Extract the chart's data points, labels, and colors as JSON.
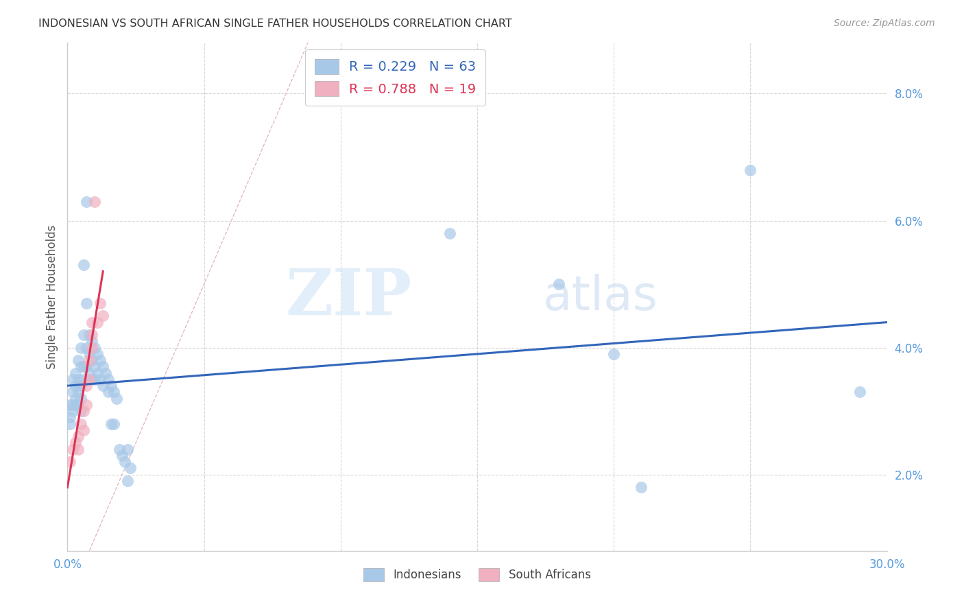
{
  "title": "INDONESIAN VS SOUTH AFRICAN SINGLE FATHER HOUSEHOLDS CORRELATION CHART",
  "source": "Source: ZipAtlas.com",
  "ylabel_label": "Single Father Households",
  "xlim": [
    0.0,
    0.3
  ],
  "ylim": [
    0.008,
    0.088
  ],
  "xticks": [
    0.0,
    0.05,
    0.1,
    0.15,
    0.2,
    0.25,
    0.3
  ],
  "yticks": [
    0.02,
    0.04,
    0.06,
    0.08
  ],
  "ytick_labels": [
    "2.0%",
    "4.0%",
    "6.0%",
    "8.0%"
  ],
  "xtick_labels": [
    "0.0%",
    "",
    "",
    "",
    "",
    "",
    "30.0%"
  ],
  "legend_r1": "R = 0.229",
  "legend_n1": "N = 63",
  "legend_r2": "R = 0.788",
  "legend_n2": "N = 19",
  "indonesian_color": "#a8c8e8",
  "south_african_color": "#f0b0c0",
  "background_color": "#ffffff",
  "grid_color": "#cccccc",
  "title_color": "#333333",
  "axis_tick_color": "#5599dd",
  "indonesian_line_color": "#3366bb",
  "south_african_line_color": "#dd3355",
  "diagonal_line_color": "#ddaaaa",
  "watermark_zip": "ZIP",
  "watermark_atlas": "atlas",
  "indonesian_data": [
    [
      0.001,
      0.031
    ],
    [
      0.001,
      0.029
    ],
    [
      0.001,
      0.028
    ],
    [
      0.002,
      0.035
    ],
    [
      0.002,
      0.033
    ],
    [
      0.002,
      0.031
    ],
    [
      0.002,
      0.03
    ],
    [
      0.003,
      0.036
    ],
    [
      0.003,
      0.034
    ],
    [
      0.003,
      0.032
    ],
    [
      0.003,
      0.031
    ],
    [
      0.004,
      0.038
    ],
    [
      0.004,
      0.035
    ],
    [
      0.004,
      0.033
    ],
    [
      0.004,
      0.031
    ],
    [
      0.005,
      0.04
    ],
    [
      0.005,
      0.037
    ],
    [
      0.005,
      0.034
    ],
    [
      0.005,
      0.032
    ],
    [
      0.005,
      0.03
    ],
    [
      0.006,
      0.053
    ],
    [
      0.006,
      0.042
    ],
    [
      0.006,
      0.037
    ],
    [
      0.006,
      0.035
    ],
    [
      0.007,
      0.063
    ],
    [
      0.007,
      0.047
    ],
    [
      0.007,
      0.04
    ],
    [
      0.007,
      0.037
    ],
    [
      0.008,
      0.042
    ],
    [
      0.008,
      0.039
    ],
    [
      0.008,
      0.036
    ],
    [
      0.009,
      0.041
    ],
    [
      0.009,
      0.038
    ],
    [
      0.009,
      0.035
    ],
    [
      0.01,
      0.04
    ],
    [
      0.01,
      0.037
    ],
    [
      0.01,
      0.035
    ],
    [
      0.011,
      0.039
    ],
    [
      0.011,
      0.036
    ],
    [
      0.012,
      0.038
    ],
    [
      0.012,
      0.035
    ],
    [
      0.013,
      0.037
    ],
    [
      0.013,
      0.034
    ],
    [
      0.014,
      0.036
    ],
    [
      0.015,
      0.035
    ],
    [
      0.015,
      0.033
    ],
    [
      0.016,
      0.034
    ],
    [
      0.016,
      0.028
    ],
    [
      0.017,
      0.033
    ],
    [
      0.017,
      0.028
    ],
    [
      0.018,
      0.032
    ],
    [
      0.019,
      0.024
    ],
    [
      0.02,
      0.023
    ],
    [
      0.021,
      0.022
    ],
    [
      0.022,
      0.024
    ],
    [
      0.022,
      0.019
    ],
    [
      0.023,
      0.021
    ],
    [
      0.14,
      0.058
    ],
    [
      0.18,
      0.05
    ],
    [
      0.2,
      0.039
    ],
    [
      0.21,
      0.018
    ],
    [
      0.25,
      0.068
    ],
    [
      0.29,
      0.033
    ]
  ],
  "south_african_data": [
    [
      0.001,
      0.022
    ],
    [
      0.002,
      0.024
    ],
    [
      0.003,
      0.025
    ],
    [
      0.004,
      0.026
    ],
    [
      0.004,
      0.024
    ],
    [
      0.005,
      0.028
    ],
    [
      0.006,
      0.03
    ],
    [
      0.006,
      0.027
    ],
    [
      0.007,
      0.034
    ],
    [
      0.007,
      0.031
    ],
    [
      0.008,
      0.038
    ],
    [
      0.008,
      0.035
    ],
    [
      0.009,
      0.044
    ],
    [
      0.009,
      0.042
    ],
    [
      0.009,
      0.04
    ],
    [
      0.01,
      0.063
    ],
    [
      0.011,
      0.044
    ],
    [
      0.012,
      0.047
    ],
    [
      0.013,
      0.045
    ]
  ],
  "indonesian_line_x0": 0.0,
  "indonesian_line_x1": 0.3,
  "indonesian_line_y0": 0.034,
  "indonesian_line_y1": 0.044,
  "south_african_line_x0": 0.0,
  "south_african_line_x1": 0.013,
  "south_african_line_y0": 0.018,
  "south_african_line_y1": 0.052
}
